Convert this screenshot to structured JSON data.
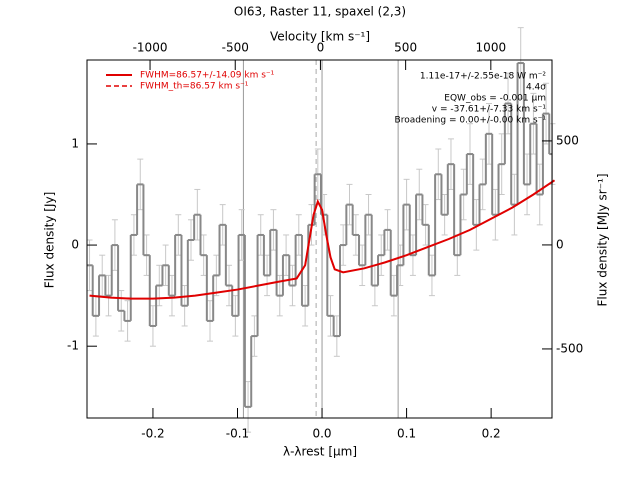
{
  "chart_data": {
    "type": "step",
    "title": "OI63, Raster 11, spaxel (2,3)",
    "x_label": "λ-λrest [µm]",
    "y_label": "Flux density [Jy]",
    "x2_label": "Velocity [km s⁻¹]",
    "y2_label": "Flux density [MJy sr⁻¹]",
    "xlim": [
      -0.278,
      0.272
    ],
    "ylim": [
      -1.71,
      1.83
    ],
    "x2lim": [
      -1370,
      1359
    ],
    "y2lim": [
      -832,
      889
    ],
    "xticks": [
      -0.2,
      -0.1,
      {
        "value": 0,
        "label": "0.0"
      },
      0.1,
      0.2
    ],
    "yticks": [
      -1,
      0,
      1
    ],
    "x2ticks": [
      -1000,
      -500,
      0,
      500,
      1000
    ],
    "y2ticks": [
      -500,
      0,
      500
    ],
    "x": [
      -0.275,
      -0.2675,
      -0.26,
      -0.2525,
      -0.245,
      -0.2375,
      -0.23,
      -0.2225,
      -0.215,
      -0.2075,
      -0.2,
      -0.1925,
      -0.185,
      -0.1775,
      -0.17,
      -0.1625,
      -0.155,
      -0.1475,
      -0.14,
      -0.1325,
      -0.125,
      -0.1175,
      -0.11,
      -0.1025,
      -0.095,
      -0.0875,
      -0.08,
      -0.0725,
      -0.065,
      -0.0575,
      -0.05,
      -0.0425,
      -0.035,
      -0.0275,
      -0.02,
      -0.0125,
      -0.005,
      0.0025,
      0.01,
      0.0175,
      0.025,
      0.0325,
      0.04,
      0.0475,
      0.055,
      0.0625,
      0.07,
      0.0775,
      0.085,
      0.0925,
      0.1,
      0.1075,
      0.115,
      0.1225,
      0.13,
      0.1375,
      0.145,
      0.1525,
      0.16,
      0.1675,
      0.175,
      0.1825,
      0.19,
      0.1975,
      0.205,
      0.2125,
      0.22,
      0.2275,
      0.235,
      0.2425,
      0.25,
      0.2575,
      0.265,
      0.2725
    ],
    "series": [
      {
        "name": "Flux",
        "color": "#888888",
        "values": [
          -0.2,
          -0.7,
          -0.3,
          -0.5,
          0.0,
          -0.65,
          -0.75,
          0.1,
          0.6,
          -0.1,
          -0.8,
          -0.4,
          -0.2,
          -0.5,
          0.1,
          -0.6,
          0.05,
          0.3,
          -0.1,
          -0.75,
          -0.3,
          0.2,
          -0.4,
          -0.7,
          0.1,
          -1.6,
          -0.9,
          0.1,
          -0.3,
          0.15,
          -0.5,
          -0.1,
          -0.4,
          0.1,
          -0.6,
          0.2,
          0.7,
          0.3,
          -0.7,
          -0.9,
          0.0,
          0.4,
          0.1,
          -0.2,
          0.3,
          -0.4,
          -0.1,
          0.15,
          -0.5,
          -0.2,
          0.4,
          -0.1,
          0.5,
          0.2,
          -0.3,
          0.7,
          0.3,
          0.8,
          -0.1,
          0.5,
          0.9,
          0.2,
          0.6,
          1.1,
          0.3,
          0.8,
          1.4,
          0.4,
          1.8,
          0.6,
          1.2,
          0.5,
          1.3,
          0.9
        ],
        "errors": [
          0.25,
          0.2,
          0.2,
          0.2,
          0.25,
          0.2,
          0.2,
          0.2,
          0.25,
          0.2,
          0.2,
          0.2,
          0.2,
          0.2,
          0.2,
          0.2,
          0.2,
          0.25,
          0.2,
          0.2,
          0.2,
          0.2,
          0.2,
          0.2,
          0.25,
          0.25,
          0.2,
          0.2,
          0.2,
          0.2,
          0.2,
          0.2,
          0.2,
          0.2,
          0.2,
          0.2,
          0.25,
          0.2,
          0.2,
          0.2,
          0.2,
          0.2,
          0.2,
          0.2,
          0.2,
          0.2,
          0.2,
          0.2,
          0.2,
          0.2,
          0.25,
          0.2,
          0.25,
          0.2,
          0.2,
          0.25,
          0.2,
          0.25,
          0.2,
          0.25,
          0.3,
          0.25,
          0.25,
          0.3,
          0.25,
          0.3,
          0.3,
          0.3,
          0.35,
          0.3,
          0.3,
          0.3,
          0.3,
          0.3
        ]
      }
    ],
    "fit": {
      "name": "FWHM=86.57+/-14.09 km s⁻¹",
      "color": "#e00000",
      "x": [
        -0.275,
        -0.25,
        -0.225,
        -0.2,
        -0.175,
        -0.15,
        -0.125,
        -0.1,
        -0.075,
        -0.05,
        -0.03,
        -0.02,
        -0.015,
        -0.01,
        -0.005,
        0.0,
        0.005,
        0.01,
        0.015,
        0.025,
        0.05,
        0.075,
        0.1,
        0.125,
        0.15,
        0.175,
        0.2,
        0.225,
        0.25,
        0.275
      ],
      "values": [
        -0.5,
        -0.52,
        -0.53,
        -0.53,
        -0.52,
        -0.5,
        -0.47,
        -0.44,
        -0.4,
        -0.36,
        -0.33,
        -0.2,
        0.05,
        0.3,
        0.43,
        0.35,
        0.1,
        -0.12,
        -0.24,
        -0.27,
        -0.23,
        -0.17,
        -0.1,
        -0.02,
        0.06,
        0.15,
        0.26,
        0.37,
        0.5,
        0.64
      ]
    },
    "fit_th": {
      "name": "FWHM_th=86.57 km s⁻¹",
      "color": "#e00000",
      "x": [
        -0.03,
        -0.02,
        -0.015,
        -0.01,
        -0.005,
        0.0,
        0.005,
        0.01,
        0.015
      ],
      "values": [
        -0.33,
        -0.2,
        0.05,
        0.3,
        0.43,
        0.35,
        0.1,
        -0.12,
        -0.24
      ]
    },
    "vlines": [
      -0.093,
      0.0,
      0.09
    ],
    "vline_dashed": -0.007,
    "annotations": [
      "1.11e-17+/-2.55e-18 W m⁻²",
      "4.4σ",
      "EQW_obs = -0.001 µm",
      "v = -37.61+/-7.33 km s⁻¹",
      "Broadening = 0.00+/-0.00 km s⁻¹"
    ]
  }
}
